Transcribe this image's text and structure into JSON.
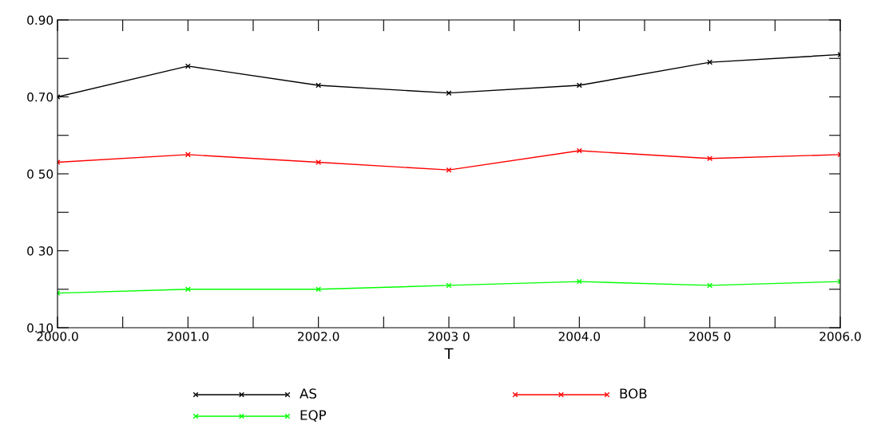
{
  "chart_data": {
    "type": "line",
    "xlabel": "T",
    "x": [
      2000,
      2001,
      2002,
      2003,
      2004,
      2005,
      2006
    ],
    "series": [
      {
        "name": "AS",
        "color": "#000000",
        "values": [
          0.7,
          0.78,
          0.73,
          0.71,
          0.73,
          0.79,
          0.81
        ]
      },
      {
        "name": "BOB",
        "color": "#ff0000",
        "values": [
          0.53,
          0.55,
          0.53,
          0.51,
          0.56,
          0.54,
          0.55
        ]
      },
      {
        "name": "EQP",
        "color": "#00ff00",
        "values": [
          0.19,
          0.2,
          0.2,
          0.21,
          0.22,
          0.21,
          0.22
        ]
      }
    ],
    "xlim": [
      2000,
      2006
    ],
    "xticks": [
      {
        "value": 2000,
        "label": "2000.0"
      },
      {
        "value": 2000.5,
        "label": null
      },
      {
        "value": 2001,
        "label": "2001.0"
      },
      {
        "value": 2001.5,
        "label": null
      },
      {
        "value": 2002,
        "label": "2002.0"
      },
      {
        "value": 2002.5,
        "label": null
      },
      {
        "value": 2003,
        "label": "2003 0"
      },
      {
        "value": 2003.5,
        "label": null
      },
      {
        "value": 2004,
        "label": "2004.0"
      },
      {
        "value": 2004.5,
        "label": null
      },
      {
        "value": 2005,
        "label": "2005 0"
      },
      {
        "value": 2005.5,
        "label": null
      },
      {
        "value": 2006,
        "label": "2006.0"
      }
    ],
    "ylim": [
      0.1,
      0.9
    ],
    "yticks": [
      {
        "value": 0.1,
        "label": "0.10"
      },
      {
        "value": 0.2,
        "label": null
      },
      {
        "value": 0.3,
        "label": "0 30"
      },
      {
        "value": 0.4,
        "label": null
      },
      {
        "value": 0.5,
        "label": "0 50"
      },
      {
        "value": 0.6,
        "label": null
      },
      {
        "value": 0.7,
        "label": "0.70"
      },
      {
        "value": 0.8,
        "label": null
      },
      {
        "value": 0.9,
        "label": "0.90"
      }
    ],
    "marker": "cross",
    "line_style": "solid",
    "grid": false,
    "legend": "bottom"
  }
}
